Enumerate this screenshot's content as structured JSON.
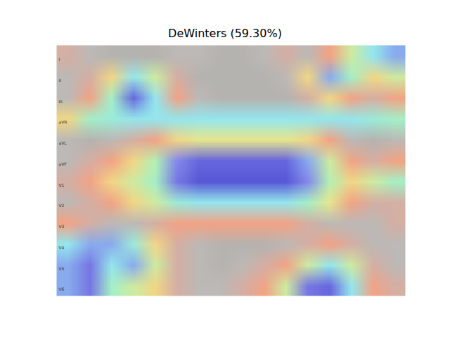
{
  "chart_data": {
    "type": "heatmap",
    "title": "DeWinters (59.30%)",
    "rows": [
      "I",
      "II",
      "III",
      "aVR",
      "aVL",
      "aVF",
      "V1",
      "V2",
      "V3",
      "V4",
      "V5",
      "V6"
    ],
    "colors": [
      "#3b3bd0",
      "#6e6ee6",
      "#7fe0f0",
      "#9af0b0",
      "#f0e070",
      "#f08a70",
      "#b5b0ad",
      "#a9a6a2"
    ],
    "tick_labels": false,
    "cells": [
      [
        0.8,
        0.9,
        1,
        1,
        1,
        0.9,
        0.9,
        1,
        1,
        0.9,
        0.8,
        0.9,
        0.7,
        0.5,
        0.3,
        0.2
      ],
      [
        0.9,
        0.8,
        0.6,
        0.3,
        0.5,
        0.8,
        1,
        1,
        1,
        1,
        0.9,
        0.6,
        0.2,
        0.4,
        0.6,
        0.5
      ],
      [
        0.9,
        0.7,
        0.4,
        0.05,
        0.3,
        0.7,
        0.9,
        1,
        1,
        1,
        1,
        0.8,
        0.6,
        0.7,
        0.8,
        0.7
      ],
      [
        0.6,
        0.4,
        0.35,
        0.3,
        0.3,
        0.3,
        0.3,
        0.3,
        0.3,
        0.3,
        0.3,
        0.3,
        0.3,
        0.3,
        0.35,
        0.4
      ],
      [
        0.9,
        1,
        0.9,
        0.8,
        0.7,
        0.6,
        0.55,
        0.55,
        0.55,
        0.55,
        0.55,
        0.6,
        0.7,
        0.9,
        1,
        0.9
      ],
      [
        0.9,
        0.8,
        0.7,
        0.6,
        0.45,
        0.15,
        0.05,
        0.05,
        0.05,
        0.05,
        0.05,
        0.2,
        0.5,
        0.7,
        0.8,
        0.7
      ],
      [
        0.8,
        0.7,
        0.6,
        0.5,
        0.4,
        0.1,
        0,
        0,
        0,
        0,
        0,
        0.15,
        0.45,
        0.6,
        0.5,
        0.4
      ],
      [
        0.9,
        0.8,
        0.7,
        0.6,
        0.5,
        0.35,
        0.3,
        0.3,
        0.3,
        0.3,
        0.3,
        0.4,
        0.55,
        0.7,
        0.8,
        0.8
      ],
      [
        0.7,
        0.8,
        0.9,
        0.9,
        0.8,
        0.7,
        0.7,
        0.7,
        0.7,
        0.7,
        0.7,
        0.8,
        0.9,
        0.9,
        0.9,
        0.8
      ],
      [
        0.3,
        0.2,
        0.2,
        0.35,
        0.6,
        0.8,
        0.9,
        1,
        1,
        1,
        0.9,
        0.8,
        0.7,
        0.8,
        0.9,
        0.9
      ],
      [
        0.2,
        0.1,
        0.3,
        0.2,
        0.5,
        0.8,
        0.9,
        1,
        0.9,
        0.8,
        0.7,
        0.5,
        0.3,
        0.5,
        0.8,
        0.9
      ],
      [
        0.2,
        0.1,
        0.4,
        0.5,
        0.6,
        0.8,
        0.9,
        0.9,
        0.8,
        0.7,
        0.5,
        0.1,
        0.05,
        0.3,
        0.7,
        0.8
      ]
    ]
  }
}
